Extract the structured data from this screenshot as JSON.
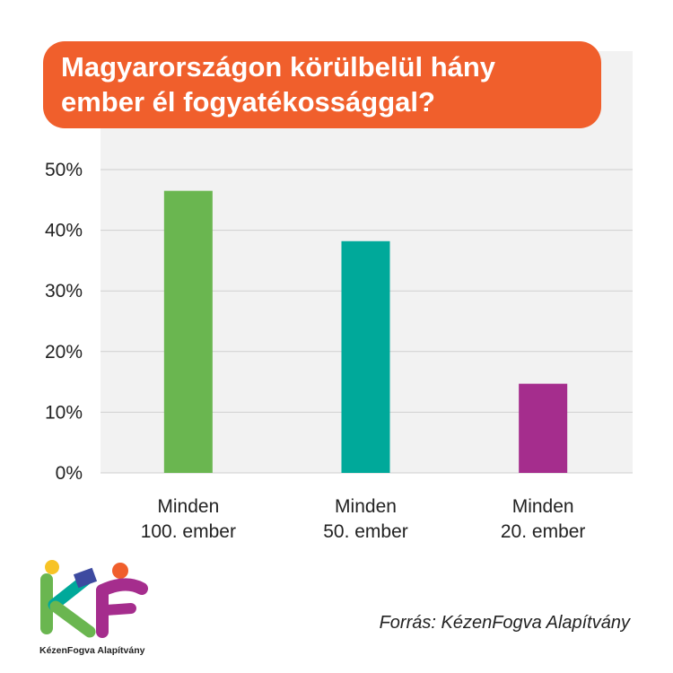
{
  "chart_data": {
    "type": "bar",
    "title_lines": [
      "Magyarországon körülbelül hány",
      "ember él fogyatékossággal?"
    ],
    "categories": [
      [
        "Minden",
        "100. ember"
      ],
      [
        "Minden",
        "50. ember"
      ],
      [
        "Minden",
        "20. ember"
      ]
    ],
    "values": [
      46.5,
      38.2,
      14.7
    ],
    "colors": [
      "#6ab650",
      "#00a99a",
      "#a52d8d"
    ],
    "ylim": [
      0,
      50
    ],
    "yticks": [
      0,
      10,
      20,
      30,
      40,
      50
    ],
    "ytick_labels": [
      "0%",
      "10%",
      "20%",
      "30%",
      "40%",
      "50%"
    ],
    "grid": true
  },
  "colors": {
    "title_bg": "#f05f2c",
    "plot_bg": "#f2f2f2",
    "grid": "#cfcfcf"
  },
  "source": "Forrás: KézenFogva Alapítvány",
  "logo": {
    "icon": "kezenfogva-logo-icon",
    "text": "KézenFogva Alapítvány"
  }
}
